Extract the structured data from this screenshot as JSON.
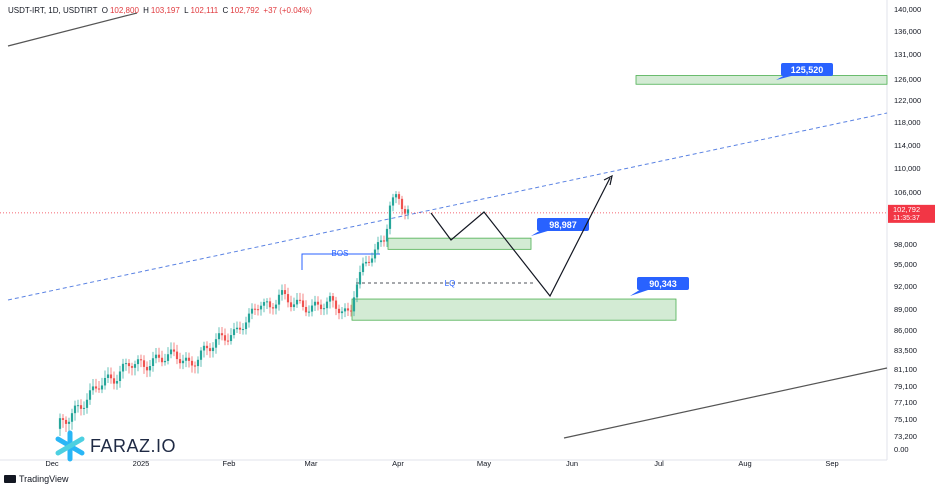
{
  "header": {
    "symbol": "USDT-IRT, 1D, USDTIRT",
    "o_label": "O",
    "o_value": "102,800",
    "h_label": "H",
    "h_value": "103,197",
    "l_label": "L",
    "l_value": "102,111",
    "c_label": "C",
    "c_value": "102,792",
    "change": "+37 (+0.04%)"
  },
  "footer": {
    "brand": "TradingView"
  },
  "watermark": {
    "text": "FARAZ.IO"
  },
  "colors": {
    "up": "#26a69a",
    "down": "#ef5350",
    "zone_fill": "#c8e6c9",
    "zone_stroke": "#4caf50",
    "label_bg": "#2962ff",
    "trend": "#5b83e3",
    "price_bg": "#f23645"
  },
  "chart_data": {
    "type": "candlestick",
    "y_axis": {
      "ticks": [
        "140,000",
        "136,000",
        "131,000",
        "126,000",
        "122,000",
        "118,000",
        "114,000",
        "110,000",
        "106,000",
        "98,000",
        "95,000",
        "92,000",
        "89,000",
        "86,000",
        "83,500",
        "81,100",
        "79,100",
        "77,100",
        "75,100",
        "73,200",
        "0.00"
      ]
    },
    "x_axis": {
      "ticks": [
        "Dec",
        "2025",
        "Feb",
        "Mar",
        "Apr",
        "May",
        "Jun",
        "Jul",
        "Aug",
        "Sep"
      ]
    },
    "last_price": {
      "value": "102,792",
      "countdown": "11:35:37"
    },
    "annotations": {
      "zones": [
        {
          "label": "125,520",
          "from": 125000,
          "to": 126700
        },
        {
          "label": "98,987",
          "from": 97200,
          "to": 98900
        },
        {
          "label": "90,343",
          "from": 87400,
          "to": 90300
        }
      ],
      "bos_label": "BOS",
      "lq_label": "LQ"
    },
    "candles_note": "price series rising from ~74,000 (Dec) to ~106,000 (early Apr)"
  }
}
